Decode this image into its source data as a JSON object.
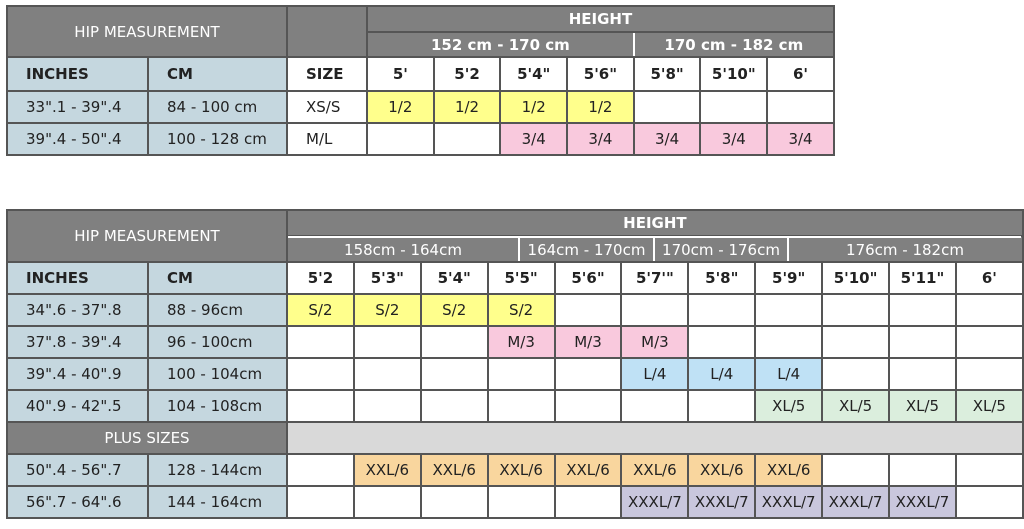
{
  "colors": {
    "yellow": "#ffff8c",
    "pink": "#f9c9dd",
    "blue": "#bfe1f5",
    "green": "#dbeedd",
    "orange": "#f9d69e",
    "lavender": "#c9c7dd",
    "header": "#808080",
    "label": "#c5d7df",
    "band": "#d9d9d9"
  },
  "table1": {
    "hip_label": "HIP MEASUREMENT",
    "height_label": "HEIGHT",
    "ranges": [
      "152 cm - 170 cm",
      "170 cm - 182 cm"
    ],
    "col_inches": "INCHES",
    "col_cm": "CM",
    "col_size": "SIZE",
    "heights": [
      "5'",
      "5'2",
      "5'4\"",
      "5'6\"",
      "5'8\"",
      "5'10\"",
      "6'"
    ],
    "rows": [
      {
        "inches": "33\".1 - 39\".4",
        "cm": "84 - 100 cm",
        "size": "XS/S",
        "cells": [
          "1/2",
          "1/2",
          "1/2",
          "1/2",
          "",
          "",
          ""
        ],
        "color": "yellow"
      },
      {
        "inches": "39\".4 - 50\".4",
        "cm": "100 - 128 cm",
        "size": "M/L",
        "cells": [
          "",
          "",
          "3/4",
          "3/4",
          "3/4",
          "3/4",
          "3/4"
        ],
        "color": "pink"
      }
    ]
  },
  "table2": {
    "hip_label": "HIP MEASUREMENT",
    "height_label": "HEIGHT",
    "ranges": [
      "158cm - 164cm",
      "164cm - 170cm",
      "170cm - 176cm",
      "176cm - 182cm"
    ],
    "col_inches": "INCHES",
    "col_cm": "CM",
    "heights": [
      "5'2",
      "5'3\"",
      "5'4\"",
      "5'5\"",
      "5'6\"",
      "5'7'\"",
      "5'8\"",
      "5'9\"",
      "5'10\"",
      "5'11\"",
      "6'"
    ],
    "rows": [
      {
        "inches": "34\".6 - 37\".8",
        "cm": "88 - 96cm",
        "cells": [
          "S/2",
          "S/2",
          "S/2",
          "S/2",
          "",
          "",
          "",
          "",
          "",
          "",
          ""
        ],
        "color": "yellow"
      },
      {
        "inches": "37\".8 - 39\".4",
        "cm": "96 - 100cm",
        "cells": [
          "",
          "",
          "",
          "M/3",
          "M/3",
          "M/3",
          "",
          "",
          "",
          "",
          ""
        ],
        "color": "pink"
      },
      {
        "inches": "39\".4 - 40\".9",
        "cm": "100 - 104cm",
        "cells": [
          "",
          "",
          "",
          "",
          "",
          "L/4",
          "L/4",
          "L/4",
          "",
          "",
          ""
        ],
        "color": "blue"
      },
      {
        "inches": "40\".9 - 42\".5",
        "cm": "104 - 108cm",
        "cells": [
          "",
          "",
          "",
          "",
          "",
          "",
          "",
          "XL/5",
          "XL/5",
          "XL/5",
          "XL/5"
        ],
        "color": "green"
      }
    ],
    "plus_label": "PLUS SIZES",
    "plus_rows": [
      {
        "inches": "50\".4 - 56\".7",
        "cm": "128 - 144cm",
        "cells": [
          "",
          "XXL/6",
          "XXL/6",
          "XXL/6",
          "XXL/6",
          "XXL/6",
          "XXL/6",
          "XXL/6",
          "",
          "",
          ""
        ],
        "color": "orange"
      },
      {
        "inches": "56\".7 - 64\".6",
        "cm": "144 - 164cm",
        "cells": [
          "",
          "",
          "",
          "",
          "",
          "XXXL/7",
          "XXXL/7",
          "XXXL/7",
          "XXXL/7",
          "XXXL/7",
          ""
        ],
        "color": "lavender"
      }
    ]
  }
}
